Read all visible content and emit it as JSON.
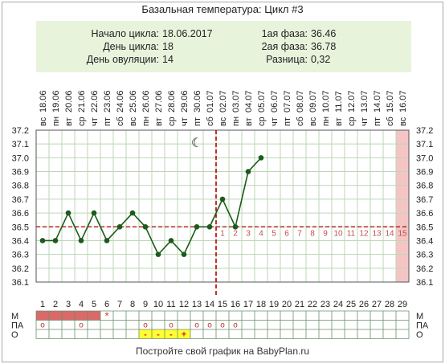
{
  "title": "Базальная температура: Цикл #3",
  "info": {
    "cycle_start_label": "Начало цикла:",
    "cycle_start_value": "18.06.2017",
    "cycle_day_label": "День цикла:",
    "cycle_day_value": "18",
    "ovulation_day_label": "День овуляции:",
    "ovulation_day_value": "14",
    "phase1_label": "1ая фаза:",
    "phase1_value": "36.46",
    "phase2_label": "2ая фаза:",
    "phase2_value": "36.78",
    "diff_label": "Разница:",
    "diff_value": "0,32"
  },
  "footer": "Постройте свой график на BabyPlan.ru",
  "chart_data": {
    "type": "line",
    "days": [
      1,
      2,
      3,
      4,
      5,
      6,
      7,
      8,
      9,
      10,
      11,
      12,
      13,
      14,
      15,
      16,
      17,
      18,
      19,
      20,
      21,
      22,
      23,
      24,
      25,
      26,
      27,
      28,
      29
    ],
    "weekdays": [
      "вс",
      "пн",
      "вт",
      "ср",
      "чт",
      "пт",
      "сб",
      "вс",
      "пн",
      "вт",
      "ср",
      "чт",
      "пт",
      "сб",
      "вс",
      "пн",
      "вт",
      "ср",
      "чт",
      "пт",
      "сб",
      "вс",
      "пн",
      "вт",
      "ср",
      "чт",
      "пт",
      "сб",
      "вс"
    ],
    "dates": [
      "18.06",
      "19.06",
      "20.06",
      "21.06",
      "22.06",
      "23.06",
      "24.06",
      "25.06",
      "26.06",
      "27.06",
      "28.06",
      "29.06",
      "30.06",
      "01.07",
      "02.07",
      "03.07",
      "04.07",
      "05.07",
      "06.07",
      "07.07",
      "08.07",
      "09.07",
      "10.07",
      "11.07",
      "12.07",
      "13.07",
      "14.07",
      "15.07",
      "16.07"
    ],
    "temperatures": [
      36.4,
      36.4,
      36.6,
      36.4,
      36.6,
      36.4,
      36.5,
      36.6,
      36.5,
      36.3,
      36.4,
      36.3,
      36.5,
      36.5,
      36.7,
      36.5,
      36.9,
      37.0
    ],
    "ylim": [
      36.1,
      37.2
    ],
    "yticks": [
      "36.1",
      "36.2",
      "36.3",
      "36.4",
      "36.5",
      "36.6",
      "36.7",
      "36.8",
      "36.9",
      "37.0",
      "37.1",
      "37.2"
    ],
    "coverline": 36.5,
    "ovulation_day": 14,
    "highlight_day": 29,
    "moon_day": 13,
    "phase2_counts": [
      "1",
      "2",
      "3",
      "4",
      "5",
      "6",
      "7",
      "8",
      "9",
      "10",
      "11",
      "12",
      "13",
      "14",
      "15"
    ],
    "colors": {
      "line": "#1a5c1a",
      "coverline": "#b00000",
      "ovulation": "#b00000",
      "grid": "#bcd6b6",
      "period": "#d96a6a",
      "highlight": "#f5c5c5",
      "yellow": "#ffff33",
      "count": "#c05050"
    }
  },
  "table": {
    "row_labels_left": [
      "М",
      "ПА",
      "О"
    ],
    "row_labels_right": [
      "М",
      "ПА",
      "О"
    ],
    "m_filled_days": [
      1,
      2,
      3,
      4,
      5
    ],
    "m_star_day": 6,
    "m_star": "*",
    "pa_marks": [
      {
        "day": 1,
        "text": "o"
      },
      {
        "day": 4,
        "text": "o"
      },
      {
        "day": 9,
        "text": "o"
      },
      {
        "day": 11,
        "text": "o"
      },
      {
        "day": 13,
        "text": "o"
      },
      {
        "day": 14,
        "text": "o"
      },
      {
        "day": 15,
        "text": "o"
      },
      {
        "day": 16,
        "text": "o"
      }
    ],
    "o_marks": [
      {
        "day": 9,
        "text": "-"
      },
      {
        "day": 10,
        "text": "-"
      },
      {
        "day": 11,
        "text": "-"
      },
      {
        "day": 12,
        "text": "+"
      }
    ]
  }
}
